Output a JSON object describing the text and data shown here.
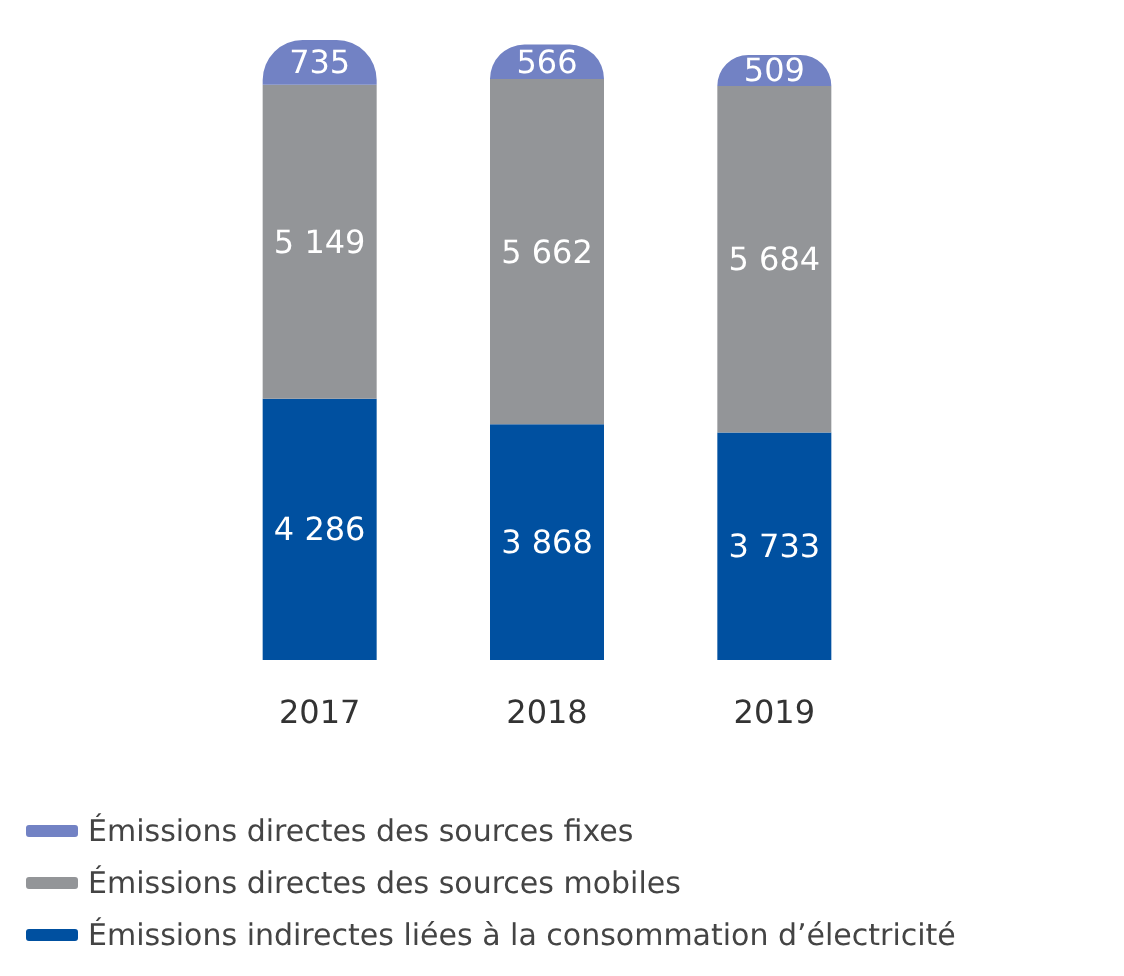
{
  "chart_data": {
    "type": "bar",
    "stacked": true,
    "categories": [
      "2017",
      "2018",
      "2019"
    ],
    "series": [
      {
        "name": "Émissions indirectes liées à la consommation d’électricité",
        "color": "#0050a0",
        "values": [
          4286,
          3868,
          3733
        ],
        "value_labels": [
          "4 286",
          "3 868",
          "3 733"
        ]
      },
      {
        "name": "Émissions directes des sources mobiles",
        "color": "#939598",
        "values": [
          5149,
          5662,
          5684
        ],
        "value_labels": [
          "5 149",
          "5 662",
          "5 684"
        ]
      },
      {
        "name": "Émissions directes des sources fixes",
        "color": "#7282c4",
        "values": [
          735,
          566,
          509
        ],
        "value_labels": [
          "735",
          "566",
          "509"
        ]
      }
    ],
    "legend": "bottom left",
    "grid": false
  }
}
